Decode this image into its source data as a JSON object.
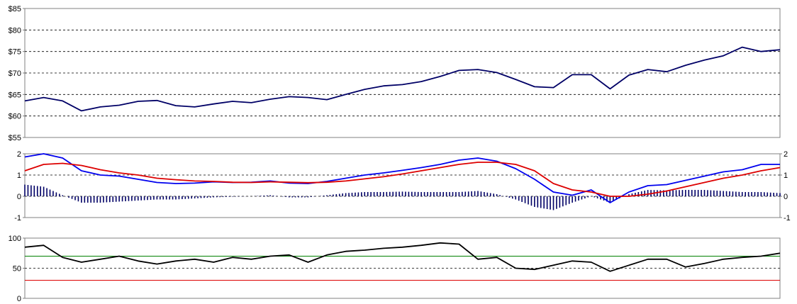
{
  "chart_data": [
    {
      "type": "line",
      "title": "",
      "ylim": [
        55,
        85
      ],
      "y_ticks": [
        "$55",
        "$60",
        "$65",
        "$70",
        "$75",
        "$80",
        "$85"
      ],
      "grid": "horizontal-dashed",
      "series": [
        {
          "color": "#000066",
          "x": [
            0,
            3,
            6,
            9,
            12,
            15,
            18,
            21,
            24,
            27,
            30,
            33,
            36,
            39,
            42,
            45,
            48,
            51,
            54,
            57,
            60,
            63,
            66,
            69,
            72,
            75,
            78,
            81,
            84,
            87,
            90,
            93,
            96,
            99,
            102,
            105,
            108,
            111,
            114,
            117,
            120
          ],
          "values": [
            63.5,
            64.3,
            63.5,
            61.2,
            62.1,
            62.5,
            63.4,
            63.6,
            62.4,
            62.1,
            62.8,
            63.4,
            63.1,
            63.9,
            64.5,
            64.3,
            63.8,
            65.0,
            66.2,
            67.0,
            67.3,
            68.0,
            69.2,
            70.6,
            70.8,
            70.1,
            68.5,
            66.8,
            66.6,
            69.6,
            69.6,
            66.3,
            69.5,
            70.8,
            70.3,
            71.8,
            73.0,
            74.0,
            76.0,
            75.0,
            75.4
          ]
        }
      ]
    },
    {
      "type": "line",
      "title": "",
      "ylim": [
        -1,
        2
      ],
      "y_ticks": [
        "-1",
        "0",
        "1",
        "2"
      ],
      "right_y_ticks": [
        "-1",
        "0",
        "1",
        "2"
      ],
      "grid": "horizontal-dashed",
      "series": [
        {
          "color": "#0000ee",
          "x": [
            0,
            3,
            6,
            9,
            12,
            15,
            18,
            21,
            24,
            27,
            30,
            33,
            36,
            39,
            42,
            45,
            48,
            51,
            54,
            57,
            60,
            63,
            66,
            69,
            72,
            75,
            78,
            81,
            84,
            87,
            90,
            93,
            96,
            99,
            102,
            105,
            108,
            111,
            114,
            117,
            120
          ],
          "values": [
            1.85,
            2.0,
            1.8,
            1.2,
            1.0,
            0.95,
            0.8,
            0.65,
            0.6,
            0.62,
            0.68,
            0.65,
            0.66,
            0.72,
            0.62,
            0.6,
            0.7,
            0.85,
            1.0,
            1.1,
            1.22,
            1.35,
            1.5,
            1.7,
            1.8,
            1.65,
            1.3,
            0.8,
            0.2,
            0.05,
            0.3,
            -0.3,
            0.2,
            0.5,
            0.55,
            0.75,
            0.95,
            1.15,
            1.25,
            1.5,
            1.5
          ]
        },
        {
          "color": "#dd0000",
          "x": [
            0,
            3,
            6,
            9,
            12,
            15,
            18,
            21,
            24,
            27,
            30,
            33,
            36,
            39,
            42,
            45,
            48,
            51,
            54,
            57,
            60,
            63,
            66,
            69,
            72,
            75,
            78,
            81,
            84,
            87,
            90,
            93,
            96,
            99,
            102,
            105,
            108,
            111,
            114,
            117,
            120
          ],
          "values": [
            1.2,
            1.5,
            1.55,
            1.45,
            1.25,
            1.1,
            1.0,
            0.85,
            0.78,
            0.72,
            0.7,
            0.66,
            0.65,
            0.68,
            0.66,
            0.64,
            0.66,
            0.72,
            0.82,
            0.92,
            1.05,
            1.2,
            1.35,
            1.5,
            1.6,
            1.6,
            1.5,
            1.2,
            0.6,
            0.3,
            0.2,
            0.0,
            0.0,
            0.1,
            0.25,
            0.45,
            0.65,
            0.85,
            1.0,
            1.2,
            1.35
          ]
        },
        {
          "type": "bar",
          "color": "#000066",
          "x": [
            0,
            3,
            6,
            9,
            12,
            15,
            18,
            21,
            24,
            27,
            30,
            33,
            36,
            39,
            42,
            45,
            48,
            51,
            54,
            57,
            60,
            63,
            66,
            69,
            72,
            75,
            78,
            81,
            84,
            87,
            90,
            93,
            96,
            99,
            102,
            105,
            108,
            111,
            114,
            117,
            120
          ],
          "values": [
            0.55,
            0.45,
            0.05,
            -0.3,
            -0.3,
            -0.25,
            -0.2,
            -0.15,
            -0.15,
            -0.1,
            -0.05,
            -0.02,
            0.0,
            0.05,
            -0.05,
            -0.05,
            0.05,
            0.15,
            0.2,
            0.2,
            0.22,
            0.2,
            0.2,
            0.2,
            0.25,
            0.1,
            -0.15,
            -0.5,
            -0.65,
            -0.3,
            0.0,
            -0.3,
            0.1,
            0.3,
            0.28,
            0.3,
            0.3,
            0.25,
            0.2,
            0.2,
            0.15
          ]
        }
      ]
    },
    {
      "type": "line",
      "title": "",
      "ylim": [
        0,
        100
      ],
      "y_ticks": [
        "0",
        "50",
        "100"
      ],
      "grid": "horizontal-dashed",
      "reference_lines": [
        {
          "value": 70,
          "color": "#008000"
        },
        {
          "value": 30,
          "color": "#dd0000"
        }
      ],
      "series": [
        {
          "color": "#000000",
          "x": [
            0,
            3,
            6,
            9,
            12,
            15,
            18,
            21,
            24,
            27,
            30,
            33,
            36,
            39,
            42,
            45,
            48,
            51,
            54,
            57,
            60,
            63,
            66,
            69,
            72,
            75,
            78,
            81,
            84,
            87,
            90,
            93,
            96,
            99,
            102,
            105,
            108,
            111,
            114,
            117,
            120
          ],
          "values": [
            85,
            88,
            68,
            60,
            65,
            70,
            62,
            57,
            62,
            65,
            60,
            68,
            65,
            70,
            72,
            60,
            72,
            78,
            80,
            83,
            85,
            88,
            92,
            90,
            65,
            68,
            50,
            48,
            55,
            62,
            60,
            45,
            55,
            65,
            65,
            52,
            58,
            65,
            68,
            70,
            75
          ]
        }
      ]
    }
  ]
}
